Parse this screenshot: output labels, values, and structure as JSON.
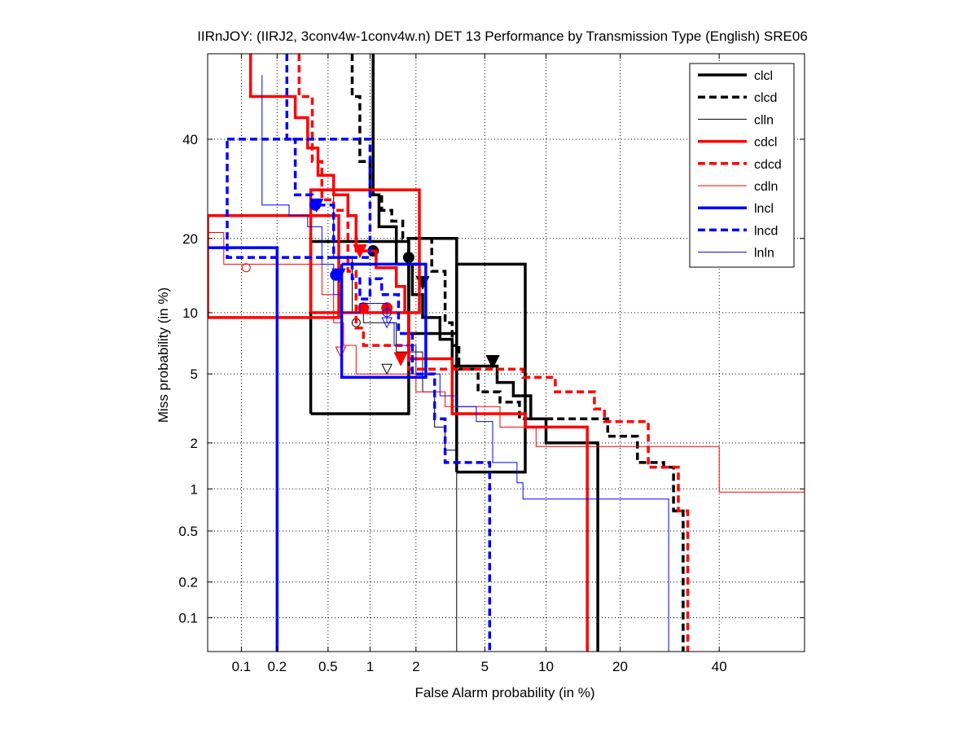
{
  "chart_data": {
    "type": "line",
    "subtype": "DET curve (normal deviate scale)",
    "title": "IIRnJOY: (IIRJ2, 3conv4w-1conv4w.n) DET 13 Performance by Transmission Type (English) SRE06",
    "xlabel": "False Alarm probability (in %)",
    "ylabel": "Miss probability (in %)",
    "xlim": [
      0.05,
      60
    ],
    "ylim": [
      0.05,
      60
    ],
    "x_ticks": [
      0.1,
      0.2,
      0.5,
      1,
      2,
      5,
      10,
      20,
      40
    ],
    "x_tick_labels": [
      "0.1",
      "0.2",
      "0.5",
      "1",
      "2",
      "5",
      "10",
      "20",
      "40"
    ],
    "y_ticks": [
      0.1,
      0.2,
      0.5,
      1,
      2,
      5,
      10,
      20,
      40
    ],
    "y_tick_labels": [
      "0.1",
      "0.2",
      "0.5",
      "1",
      "2",
      "5",
      "10",
      "20",
      "40"
    ],
    "grid": true,
    "legend_position": "top-right",
    "series": [
      {
        "name": "clcl",
        "color": "#000000",
        "style": "thick-solid",
        "points": [
          [
            1.05,
            60
          ],
          [
            1.05,
            28
          ],
          [
            1.15,
            28
          ],
          [
            1.15,
            22
          ],
          [
            1.5,
            22
          ],
          [
            1.5,
            16
          ],
          [
            1.9,
            16
          ],
          [
            1.9,
            12
          ],
          [
            2.2,
            12
          ],
          [
            2.2,
            9.5
          ],
          [
            2.8,
            9.5
          ],
          [
            2.8,
            7.5
          ],
          [
            3.3,
            7.5
          ],
          [
            3.3,
            5.5
          ],
          [
            5.8,
            5.5
          ],
          [
            5.8,
            4.5
          ],
          [
            7,
            4.5
          ],
          [
            7,
            3.8
          ],
          [
            8.5,
            3.8
          ],
          [
            8.5,
            2.8
          ],
          [
            10,
            2.8
          ],
          [
            10,
            2
          ],
          [
            16.5,
            2
          ],
          [
            16.5,
            0.05
          ]
        ],
        "act_dcf": [
          1.05,
          18
        ],
        "min_dcf": [
          5.5,
          5.8
        ],
        "ci_box_act": [
          0.37,
          1.8,
          3,
          19.5
        ],
        "ci_box_min": [
          3.5,
          8,
          1.3,
          16
        ]
      },
      {
        "name": "clcd",
        "color": "#000000",
        "style": "thick-dashed",
        "points": [
          [
            0.75,
            60
          ],
          [
            0.75,
            50
          ],
          [
            0.85,
            50
          ],
          [
            0.85,
            35
          ],
          [
            1,
            35
          ],
          [
            1,
            28
          ],
          [
            1.2,
            28
          ],
          [
            1.2,
            25
          ],
          [
            1.4,
            25
          ],
          [
            1.4,
            23
          ],
          [
            1.65,
            23
          ],
          [
            1.65,
            20
          ],
          [
            2.5,
            20
          ],
          [
            2.5,
            15
          ],
          [
            3,
            15
          ],
          [
            3,
            9
          ],
          [
            3.3,
            9
          ],
          [
            3.3,
            7
          ],
          [
            3.6,
            7
          ],
          [
            3.6,
            5.3
          ],
          [
            4.6,
            5.3
          ],
          [
            4.6,
            4
          ],
          [
            6,
            4
          ],
          [
            6,
            3.5
          ],
          [
            7.5,
            3.5
          ],
          [
            7.5,
            2.8
          ],
          [
            18,
            2.8
          ],
          [
            18,
            2.2
          ],
          [
            23,
            2.2
          ],
          [
            23,
            1.5
          ],
          [
            28,
            1.5
          ],
          [
            28,
            1.4
          ],
          [
            30,
            1.4
          ],
          [
            30,
            0.7
          ],
          [
            32,
            0.7
          ],
          [
            32,
            0.05
          ]
        ],
        "act_dcf": [
          1.8,
          17
        ],
        "min_dcf": [
          2.2,
          13.5
        ],
        "ci_box_act": [
          1.8,
          3.5,
          8,
          20
        ]
      },
      {
        "name": "clln",
        "color": "#000000",
        "style": "thin-solid",
        "points": [
          [
            0.55,
            30
          ],
          [
            0.55,
            17
          ],
          [
            0.75,
            17
          ],
          [
            0.75,
            10
          ],
          [
            0.9,
            10
          ],
          [
            0.9,
            9
          ],
          [
            1.5,
            9
          ],
          [
            1.5,
            6.5
          ],
          [
            2.2,
            6.5
          ],
          [
            2.2,
            4
          ],
          [
            2.6,
            4
          ],
          [
            2.6,
            2.5
          ],
          [
            3,
            2.5
          ],
          [
            3,
            1.8
          ],
          [
            3.5,
            1.8
          ],
          [
            3.5,
            0.05
          ]
        ],
        "act_dcf": [
          0.8,
          9
        ],
        "min_dcf": [
          1.3,
          5.3
        ]
      },
      {
        "name": "cdcl",
        "color": "#ff0000",
        "style": "thick-solid",
        "points": [
          [
            0.12,
            60
          ],
          [
            0.12,
            50
          ],
          [
            0.28,
            50
          ],
          [
            0.28,
            45
          ],
          [
            0.35,
            45
          ],
          [
            0.35,
            38
          ],
          [
            0.42,
            38
          ],
          [
            0.42,
            32
          ],
          [
            0.55,
            32
          ],
          [
            0.55,
            28
          ],
          [
            0.7,
            28
          ],
          [
            0.7,
            24
          ],
          [
            0.8,
            24
          ],
          [
            0.8,
            18
          ],
          [
            1.1,
            18
          ],
          [
            1.1,
            15.5
          ],
          [
            1.5,
            15.5
          ],
          [
            1.5,
            13
          ],
          [
            1.7,
            13
          ],
          [
            1.7,
            10
          ],
          [
            1.8,
            10
          ],
          [
            1.8,
            6
          ],
          [
            3.3,
            6
          ],
          [
            3.3,
            3
          ],
          [
            8,
            3
          ],
          [
            8,
            2.5
          ],
          [
            15,
            2.5
          ],
          [
            15,
            0.05
          ]
        ],
        "act_dcf": [
          0.9,
          10.5
        ],
        "min_dcf": [
          1.6,
          6
        ],
        "ci_box_act": [
          0.37,
          2.1,
          10,
          29
        ],
        "ci_box_act_secondary": [
          0.05,
          0.6,
          9.5,
          24
        ]
      },
      {
        "name": "cdcd",
        "color": "#ff0000",
        "style": "thick-dashed",
        "points": [
          [
            0.3,
            60
          ],
          [
            0.3,
            50
          ],
          [
            0.38,
            50
          ],
          [
            0.38,
            35
          ],
          [
            0.45,
            35
          ],
          [
            0.45,
            27
          ],
          [
            0.55,
            27
          ],
          [
            0.55,
            25
          ],
          [
            0.7,
            25
          ],
          [
            0.7,
            15
          ],
          [
            0.8,
            15
          ],
          [
            0.8,
            8.5
          ],
          [
            0.9,
            8.5
          ],
          [
            0.9,
            7
          ],
          [
            1.8,
            7
          ],
          [
            1.8,
            5.3
          ],
          [
            7.8,
            5.3
          ],
          [
            7.8,
            4.8
          ],
          [
            11,
            4.8
          ],
          [
            11,
            4
          ],
          [
            16,
            4
          ],
          [
            16,
            3.2
          ],
          [
            17.5,
            3.2
          ],
          [
            17.5,
            2.7
          ],
          [
            25,
            2.7
          ],
          [
            25,
            1.4
          ],
          [
            31,
            1.4
          ],
          [
            31,
            0.7
          ],
          [
            33,
            0.7
          ],
          [
            33,
            0.05
          ]
        ],
        "act_dcf": [
          1.3,
          10.5
        ],
        "min_dcf": [
          0.85,
          18
        ]
      },
      {
        "name": "cdln",
        "color": "#ff0000",
        "style": "thin-solid",
        "points": [
          [
            0.05,
            23
          ],
          [
            0.05,
            21
          ],
          [
            0.07,
            21
          ],
          [
            0.07,
            16
          ],
          [
            0.45,
            16
          ],
          [
            0.45,
            12
          ],
          [
            0.55,
            12
          ],
          [
            0.55,
            9
          ],
          [
            0.65,
            9
          ],
          [
            0.65,
            7
          ],
          [
            0.8,
            7
          ],
          [
            0.8,
            5
          ],
          [
            2,
            5
          ],
          [
            2,
            4
          ],
          [
            3,
            4
          ],
          [
            3,
            3.3
          ],
          [
            6,
            3.3
          ],
          [
            6,
            2.5
          ],
          [
            9,
            2.5
          ],
          [
            9,
            1.9
          ],
          [
            40,
            1.9
          ],
          [
            40,
            0.95
          ],
          [
            60,
            0.95
          ]
        ],
        "act_dcf": [
          0.11,
          15.5
        ],
        "min_dcf": [
          0.62,
          6.5
        ]
      },
      {
        "name": "lncl",
        "color": "#0000ff",
        "style": "thick-solid",
        "points": [
          [
            0.05,
            18.5
          ],
          [
            0.2,
            18.5
          ],
          [
            0.2,
            0.05
          ]
        ],
        "extra_segments": [
          [
            [
              0.63,
              16
            ],
            [
              2.3,
              16
            ],
            [
              2.3,
              4.8
            ],
            [
              0.63,
              4.8
            ],
            [
              0.63,
              16
            ]
          ]
        ],
        "act_dcf": [
          0.57,
          14.5
        ],
        "min_dcf": [
          0.6,
          14.5
        ]
      },
      {
        "name": "lncd",
        "color": "#0000ff",
        "style": "thick-dashed",
        "points": [
          [
            0.24,
            60
          ],
          [
            0.24,
            40
          ],
          [
            0.28,
            40
          ],
          [
            0.28,
            28
          ],
          [
            0.38,
            28
          ],
          [
            0.38,
            26
          ],
          [
            0.55,
            26
          ],
          [
            0.55,
            17
          ],
          [
            0.75,
            17
          ],
          [
            0.75,
            14
          ],
          [
            0.85,
            14
          ],
          [
            0.85,
            11.5
          ],
          [
            1,
            11.5
          ],
          [
            1,
            14
          ],
          [
            1.2,
            14
          ],
          [
            1.2,
            12
          ],
          [
            1.55,
            12
          ],
          [
            1.55,
            8
          ],
          [
            1.9,
            8
          ],
          [
            1.9,
            5
          ],
          [
            2.6,
            5
          ],
          [
            2.6,
            2.8
          ],
          [
            3,
            2.8
          ],
          [
            3,
            1.5
          ],
          [
            5.3,
            1.5
          ],
          [
            5.3,
            0.05
          ]
        ],
        "extra_segments": [
          [
            [
              0.075,
              40
            ],
            [
              1,
              40
            ],
            [
              1,
              17
            ],
            [
              0.075,
              17
            ],
            [
              0.075,
              40
            ]
          ]
        ],
        "act_dcf": [
          0.4,
          26
        ],
        "min_dcf": [
          0.41,
          26
        ]
      },
      {
        "name": "lnln",
        "color": "#0000ff",
        "style": "thin-solid",
        "points": [
          [
            0.15,
            55
          ],
          [
            0.15,
            26
          ],
          [
            0.25,
            26
          ],
          [
            0.25,
            24
          ],
          [
            0.35,
            24
          ],
          [
            0.35,
            22
          ],
          [
            0.45,
            22
          ],
          [
            0.45,
            16
          ],
          [
            0.55,
            16
          ],
          [
            0.55,
            12
          ],
          [
            0.62,
            12
          ],
          [
            0.62,
            10
          ],
          [
            0.85,
            10
          ],
          [
            0.85,
            11
          ],
          [
            1.3,
            11
          ],
          [
            1.3,
            9
          ],
          [
            1.45,
            9
          ],
          [
            1.45,
            7
          ],
          [
            2,
            7
          ],
          [
            2,
            5
          ],
          [
            2.8,
            5
          ],
          [
            2.8,
            3.8
          ],
          [
            3.5,
            3.8
          ],
          [
            3.5,
            3.3
          ],
          [
            4.5,
            3.3
          ],
          [
            4.5,
            2.7
          ],
          [
            5.5,
            2.7
          ],
          [
            5.5,
            1.5
          ],
          [
            7.3,
            1.5
          ],
          [
            7.3,
            1.1
          ],
          [
            7.8,
            1.1
          ],
          [
            7.8,
            0.85
          ],
          [
            29,
            0.85
          ],
          [
            29,
            0.05
          ]
        ],
        "act_dcf": [
          1.3,
          10
        ],
        "min_dcf": [
          1.3,
          9
        ]
      }
    ]
  }
}
